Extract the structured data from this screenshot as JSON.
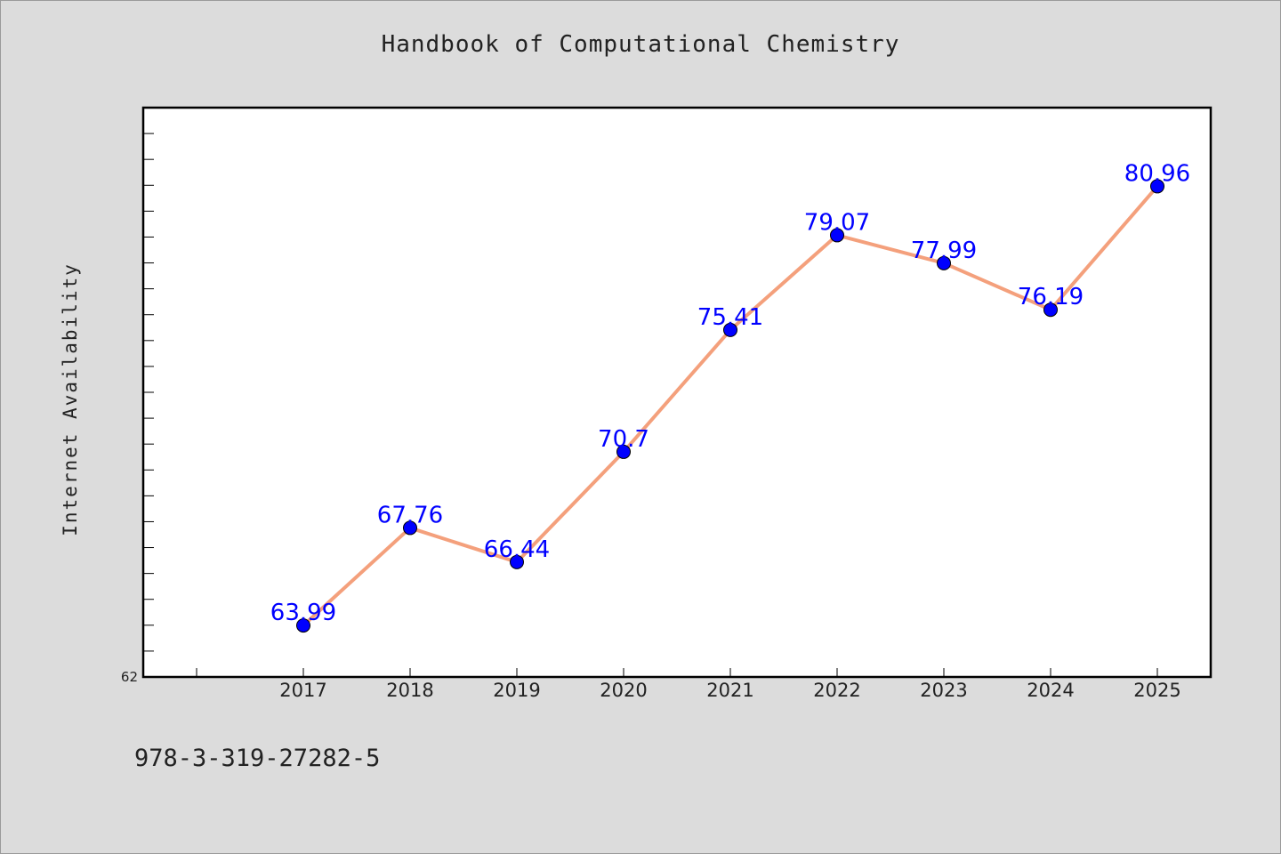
{
  "chart_data": {
    "type": "line",
    "title": "Handbook of Computational Chemistry",
    "xlabel": "",
    "ylabel": "Internet Availability",
    "categories": [
      "2017",
      "2018",
      "2019",
      "2020",
      "2021",
      "2022",
      "2023",
      "2024",
      "2025"
    ],
    "series": [
      {
        "values": [
          63.99,
          67.76,
          66.44,
          70.7,
          75.41,
          79.07,
          77.99,
          76.19,
          80.96
        ],
        "labels": [
          "63.99",
          "67.76",
          "66.44",
          "70.7",
          "75.41",
          "79.07",
          "77.99",
          "76.19",
          "80.96"
        ],
        "line_color": "#f4a07c",
        "marker_color": "#0000ff"
      }
    ],
    "y_tick_labels": [
      "62"
    ],
    "ylim": [
      62,
      84
    ],
    "grid": false,
    "legend": "none"
  },
  "footer": {
    "isbn": "978-3-319-27282-5"
  }
}
